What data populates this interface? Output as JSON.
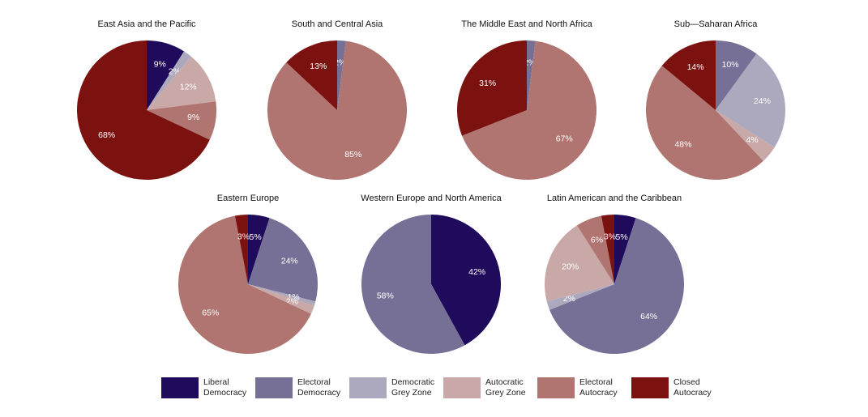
{
  "chart_data": [
    {
      "type": "pie",
      "title": "East Asia and the Pacific",
      "categories": [
        "Liberal Democracy",
        "Democratic Grey Zone",
        "Autocratic Grey Zone",
        "Electoral Autocracy",
        "Closed Autocracy"
      ],
      "values": [
        9,
        2,
        12,
        9,
        68
      ],
      "value_labels": [
        "9%",
        "2%",
        "12%",
        "9%",
        "68%"
      ],
      "colors": [
        "#1f0a5c",
        "#aca8bd",
        "#c9a9a8",
        "#b07570",
        "#7b120f"
      ]
    },
    {
      "type": "pie",
      "title": "South and Central Asia",
      "categories": [
        "Electoral Democracy",
        "Electoral Autocracy",
        "Closed Autocracy"
      ],
      "values": [
        2,
        85,
        13
      ],
      "value_labels": [
        "2%",
        "85%",
        "13%"
      ],
      "colors": [
        "#777096",
        "#b07570",
        "#7b120f"
      ]
    },
    {
      "type": "pie",
      "title": "The Middle East and North Africa",
      "categories": [
        "Electoral Democracy",
        "Electoral Autocracy",
        "Closed Autocracy"
      ],
      "values": [
        2,
        67,
        31
      ],
      "value_labels": [
        "2%",
        "67%",
        "31%"
      ],
      "colors": [
        "#777096",
        "#b07570",
        "#7b120f"
      ]
    },
    {
      "type": "pie",
      "title": "Sub—Saharan Africa",
      "categories": [
        "Electoral Democracy",
        "Democratic Grey Zone",
        "Autocratic Grey Zone",
        "Electoral Autocracy",
        "Closed Autocracy"
      ],
      "values": [
        10,
        24,
        4,
        48,
        14
      ],
      "value_labels": [
        "10%",
        "24%",
        "4%",
        "48%",
        "14%"
      ],
      "colors": [
        "#777096",
        "#aca8bd",
        "#c9a9a8",
        "#b07570",
        "#7b120f"
      ]
    },
    {
      "type": "pie",
      "title": "Eastern Europe",
      "categories": [
        "Liberal Democracy",
        "Electoral Democracy",
        "Democratic Grey Zone",
        "Autocratic Grey Zone",
        "Electoral Autocracy",
        "Closed Autocracy"
      ],
      "values": [
        5,
        24,
        1,
        2,
        65,
        3
      ],
      "value_labels": [
        "5%",
        "24%",
        "1%",
        "2%",
        "65%",
        "3%"
      ],
      "colors": [
        "#1f0a5c",
        "#777096",
        "#aca8bd",
        "#c9a9a8",
        "#b07570",
        "#7b120f"
      ]
    },
    {
      "type": "pie",
      "title": "Western Europe and North America",
      "categories": [
        "Liberal Democracy",
        "Electoral Democracy"
      ],
      "values": [
        42,
        58
      ],
      "value_labels": [
        "42%",
        "58%"
      ],
      "colors": [
        "#1f0a5c",
        "#777096"
      ]
    },
    {
      "type": "pie",
      "title": "Latin American and the Caribbean",
      "categories": [
        "Liberal Democracy",
        "Electoral Democracy",
        "Democratic Grey Zone",
        "Autocratic Grey Zone",
        "Electoral Autocracy",
        "Closed Autocracy"
      ],
      "values": [
        5,
        64,
        2,
        20,
        6,
        3
      ],
      "value_labels": [
        "5%",
        "64%",
        "2%",
        "20%",
        "6%",
        "3%"
      ],
      "colors": [
        "#1f0a5c",
        "#777096",
        "#aca8bd",
        "#c9a9a8",
        "#b07570",
        "#7b120f"
      ]
    }
  ],
  "legend": {
    "labels": [
      "Liberal Democracy",
      "Electoral Democracy",
      "Democratic Grey Zone",
      "Autocratic Grey Zone",
      "Electoral Autocracy",
      "Closed Autocracy"
    ],
    "colors": [
      "#1f0a5c",
      "#777096",
      "#aca8bd",
      "#c9a9a8",
      "#b07570",
      "#7b120f"
    ]
  }
}
